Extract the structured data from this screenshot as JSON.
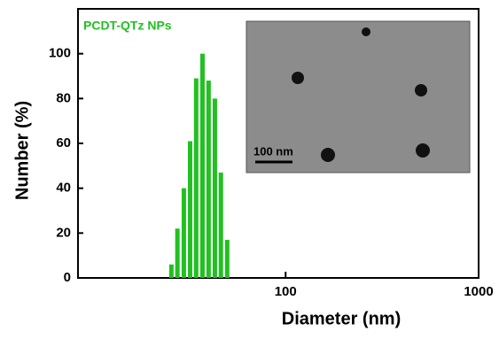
{
  "chart_data": {
    "type": "bar",
    "x_log": true,
    "legend_label": "PCDT-QTz NPs",
    "xlabel": "Diameter (nm)",
    "ylabel": "Number (%)",
    "x": [
      25.6,
      27.5,
      29.7,
      32.0,
      34.4,
      37.1,
      39.9,
      43.0,
      46.2,
      49.8
    ],
    "values": [
      6,
      22,
      40,
      61,
      89,
      100,
      88,
      80,
      47,
      17
    ],
    "color": "#22c022",
    "xlim": [
      8.4,
      1000
    ],
    "xticks": [
      100,
      1000
    ],
    "ylim": [
      0,
      120
    ],
    "yticks": [
      0,
      20,
      40,
      60,
      80,
      100
    ],
    "inset_scale_label": "100 nm"
  }
}
